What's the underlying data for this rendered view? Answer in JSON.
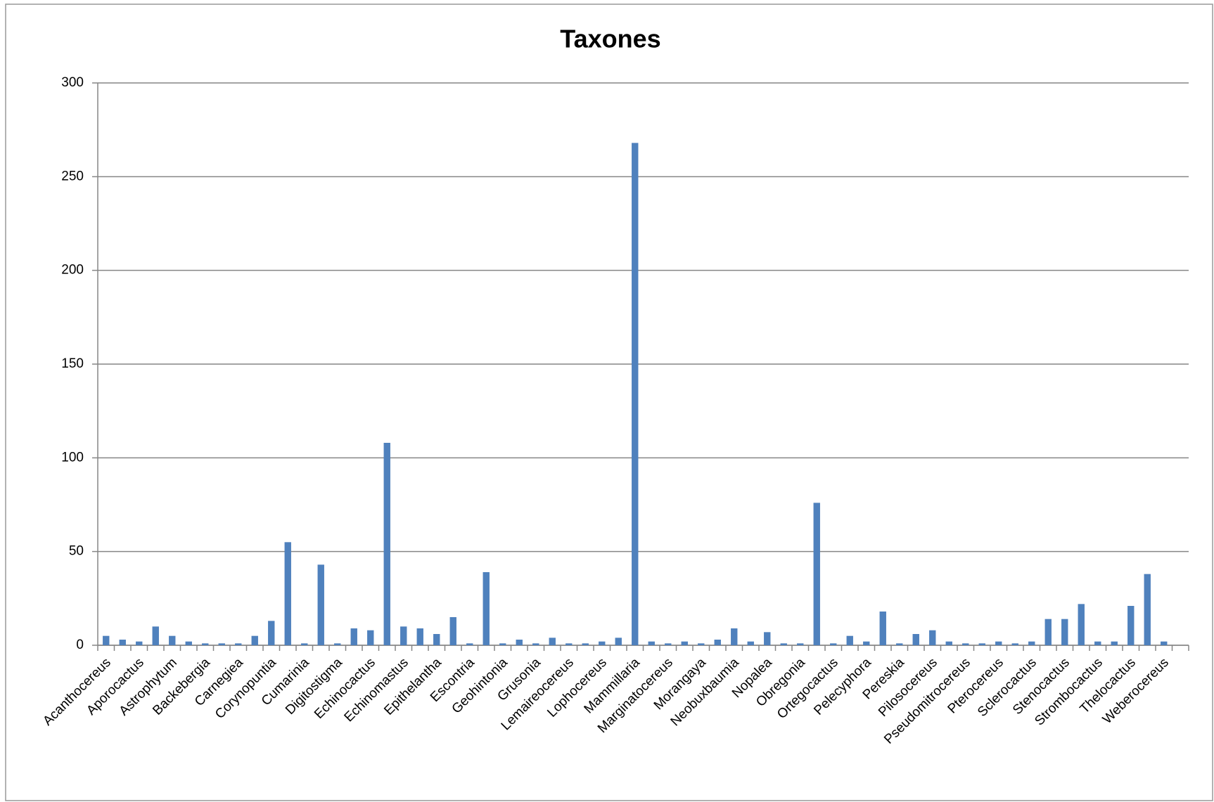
{
  "chart_data": {
    "type": "bar",
    "title": "Taxones",
    "categories": [
      "Acanthocereus",
      null,
      "Aporocactus",
      null,
      "Astrophytum",
      null,
      "Backebergia",
      null,
      "Carnegiea",
      null,
      "Corynopuntia",
      null,
      "Cumarinia",
      null,
      "Digitostigma",
      null,
      "Echinocactus",
      null,
      "Echinomastus",
      null,
      "Epithelantha",
      null,
      "Escontria",
      null,
      "Geohintonia",
      null,
      "Grusonia",
      null,
      "Lemaireocereus",
      null,
      "Lophocereus",
      null,
      "Mammillaria",
      null,
      "Marginatocereus",
      null,
      "Morangaya",
      null,
      "Neobuxbaumia",
      null,
      "Nopalea",
      null,
      "Obregonia",
      null,
      "Ortegocactus",
      null,
      "Pelecyphora",
      null,
      "Pereskia",
      null,
      "Pilosocereus",
      null,
      "Pseudomitrocereus",
      null,
      "Pterocereus",
      null,
      "Sclerocactus",
      null,
      "Stenocactus",
      null,
      "Strombocactus",
      null,
      "Thelocactus",
      null,
      "Weberocereus",
      null
    ],
    "values": [
      5,
      3,
      2,
      10,
      5,
      2,
      1,
      1,
      1,
      5,
      13,
      55,
      1,
      43,
      1,
      9,
      8,
      108,
      10,
      9,
      6,
      15,
      1,
      39,
      1,
      3,
      1,
      4,
      1,
      1,
      2,
      4,
      268,
      2,
      1,
      2,
      1,
      3,
      9,
      2,
      7,
      1,
      1,
      76,
      1,
      5,
      2,
      18,
      1,
      6,
      8,
      2,
      1,
      1,
      2,
      1,
      2,
      14,
      14,
      22,
      2,
      2,
      21,
      38,
      2,
      0
    ],
    "color": "#4f81bd",
    "ylim": [
      0,
      300
    ],
    "yticks": [
      0,
      50,
      100,
      150,
      200,
      250,
      300
    ],
    "grid": true
  }
}
